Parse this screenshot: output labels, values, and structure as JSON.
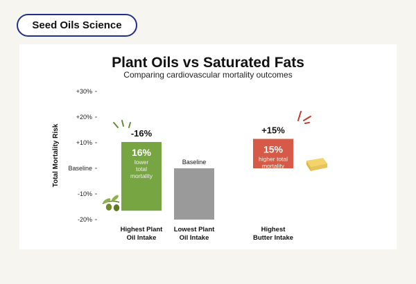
{
  "header": {
    "badge": "Seed Oils Science"
  },
  "colors": {
    "green": "#76a541",
    "gray": "#9a9a9a",
    "red": "#d65a47",
    "accent": "#c0392b"
  },
  "chart_data": {
    "type": "bar",
    "title": "Plant Oils vs Saturated Fats",
    "subtitle": "Comparing cardiovascular mortality outcomes",
    "ylabel": "Total Mortality Risk",
    "xlabel": "",
    "ylim": [
      -20,
      30
    ],
    "yticks": [
      {
        "value": 30,
        "label": "+30%"
      },
      {
        "value": 20,
        "label": "+20%"
      },
      {
        "value": 10,
        "label": "+10%"
      },
      {
        "value": 0,
        "label": "Baseline"
      },
      {
        "value": -10,
        "label": "-10%"
      },
      {
        "value": -20,
        "label": "-20%"
      }
    ],
    "categories": [
      {
        "lines": [
          "Highest Plant",
          "Oil Intake"
        ],
        "value": -16,
        "top_label": "-16%",
        "inner_big": "16%",
        "inner_small": [
          "lower",
          "total",
          "mortality"
        ],
        "color": "#76a541",
        "icon": "olive-branch-icon"
      },
      {
        "lines": [
          "Lowest Plant",
          "Oil Intake"
        ],
        "value": 0,
        "top_label": "Baseline",
        "inner_big": "",
        "inner_small": [],
        "color": "#9a9a9a",
        "icon": ""
      },
      {
        "lines": [
          "Highest",
          "Butter Intake"
        ],
        "value": 15,
        "top_label": "+15%",
        "inner_big": "15%",
        "inner_small": [
          "higher total",
          "mortality"
        ],
        "color": "#d65a47",
        "icon": "butter-icon"
      }
    ],
    "grid": false,
    "legend": "none"
  }
}
